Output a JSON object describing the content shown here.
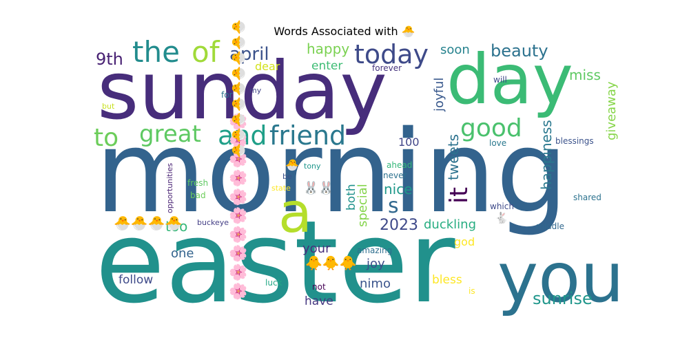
{
  "chart_data": {
    "type": "wordcloud",
    "title": "Words Associated with 🐣",
    "background": "#ffffff",
    "colormap": "viridis",
    "words": [
      {
        "text": "morning",
        "color": "#33638d"
      },
      {
        "text": "easter",
        "color": "#21918c"
      },
      {
        "text": "sunday",
        "color": "#472d7b"
      },
      {
        "text": "day",
        "color": "#3bbb75"
      },
      {
        "text": "you",
        "color": "#2c728e"
      },
      {
        "text": "a",
        "color": "#b5de2b"
      },
      {
        "text": "today",
        "color": "#3e4a89"
      },
      {
        "text": "the",
        "color": "#228c8d"
      },
      {
        "text": "of",
        "color": "#a0da39"
      },
      {
        "text": "good",
        "color": "#4ac16d"
      },
      {
        "text": "friend",
        "color": "#2a788e"
      },
      {
        "text": "and",
        "color": "#1f9f88"
      },
      {
        "text": "great",
        "color": "#5ec962"
      },
      {
        "text": "to",
        "color": "#6ccd5a"
      },
      {
        "text": "it",
        "color": "#440154"
      },
      {
        "text": "s",
        "color": "#31688e"
      },
      {
        "text": "april",
        "color": "#3b528b"
      },
      {
        "text": "9th",
        "color": "#482173"
      },
      {
        "text": "beauty",
        "color": "#2c728e"
      },
      {
        "text": "happy",
        "color": "#7ad151"
      },
      {
        "text": "soon",
        "color": "#26828e"
      },
      {
        "text": "miss",
        "color": "#5ec962"
      },
      {
        "text": "enter",
        "color": "#3dbc74"
      },
      {
        "text": "dear",
        "color": "#d2e21b"
      },
      {
        "text": "joyful",
        "color": "#38588c"
      },
      {
        "text": "giveaway",
        "color": "#86d549"
      },
      {
        "text": "happiness",
        "color": "#2a788e"
      },
      {
        "text": "tweets",
        "color": "#2c728e"
      },
      {
        "text": "sunrise",
        "color": "#1f968b"
      },
      {
        "text": "2023",
        "color": "#3e4989"
      },
      {
        "text": "duckling",
        "color": "#27ad81"
      },
      {
        "text": "nice",
        "color": "#1f998a"
      },
      {
        "text": "special",
        "color": "#84d44b"
      },
      {
        "text": "both",
        "color": "#20928c"
      },
      {
        "text": "too",
        "color": "#35b779"
      },
      {
        "text": "one",
        "color": "#33638d"
      },
      {
        "text": "your",
        "color": "#472f7d"
      },
      {
        "text": "joy",
        "color": "#3d4d8a"
      },
      {
        "text": "nimo",
        "color": "#3a548c"
      },
      {
        "text": "bless",
        "color": "#fde725"
      },
      {
        "text": "god",
        "color": "#fde725"
      },
      {
        "text": "have",
        "color": "#453781"
      },
      {
        "text": "follow",
        "color": "#3e4a89"
      },
      {
        "text": "100",
        "color": "#404588"
      },
      {
        "text": "blessings",
        "color": "#3b528b"
      },
      {
        "text": "love",
        "color": "#2a788e"
      },
      {
        "text": "shared",
        "color": "#2c728e"
      },
      {
        "text": "middle",
        "color": "#31688e"
      },
      {
        "text": "which",
        "color": "#3e4a89"
      },
      {
        "text": "will",
        "color": "#3e4989"
      },
      {
        "text": "forever",
        "color": "#46337e"
      },
      {
        "text": "ahead",
        "color": "#35b779"
      },
      {
        "text": "never",
        "color": "#2c728e"
      },
      {
        "text": "tony",
        "color": "#1f968b"
      },
      {
        "text": "be",
        "color": "#3b528b"
      },
      {
        "text": "state",
        "color": "#fde725"
      },
      {
        "text": "fresh",
        "color": "#5ec962"
      },
      {
        "text": "bad",
        "color": "#6ccd5a"
      },
      {
        "text": "buckeye",
        "color": "#433e85"
      },
      {
        "text": "opportunities",
        "color": "#482173"
      },
      {
        "text": "for",
        "color": "#2c728e"
      },
      {
        "text": "my",
        "color": "#414487"
      },
      {
        "text": "but",
        "color": "#c8e020"
      },
      {
        "text": "amazing",
        "color": "#2e6e8e"
      },
      {
        "text": "luck",
        "color": "#22a884"
      },
      {
        "text": "not",
        "color": "#440154"
      },
      {
        "text": "is",
        "color": "#fde725"
      },
      {
        "text": "🌸🌸🌸🌸🌸🌸🌸🌸🌸🌸",
        "color": "#3b528b"
      },
      {
        "text": "🐣🐣🐣🐣🐣🐣🐣🐣🐣",
        "color": "#482475"
      },
      {
        "text": "🐣🐣🐣🐣",
        "color": "#3b528b"
      },
      {
        "text": "🐥🐥🐥",
        "color": "#fde725"
      },
      {
        "text": "🐰🐰",
        "color": "#31688e"
      },
      {
        "text": "🐣",
        "color": "#2a788e"
      },
      {
        "text": "🐇",
        "color": "#3dbc74"
      }
    ]
  }
}
